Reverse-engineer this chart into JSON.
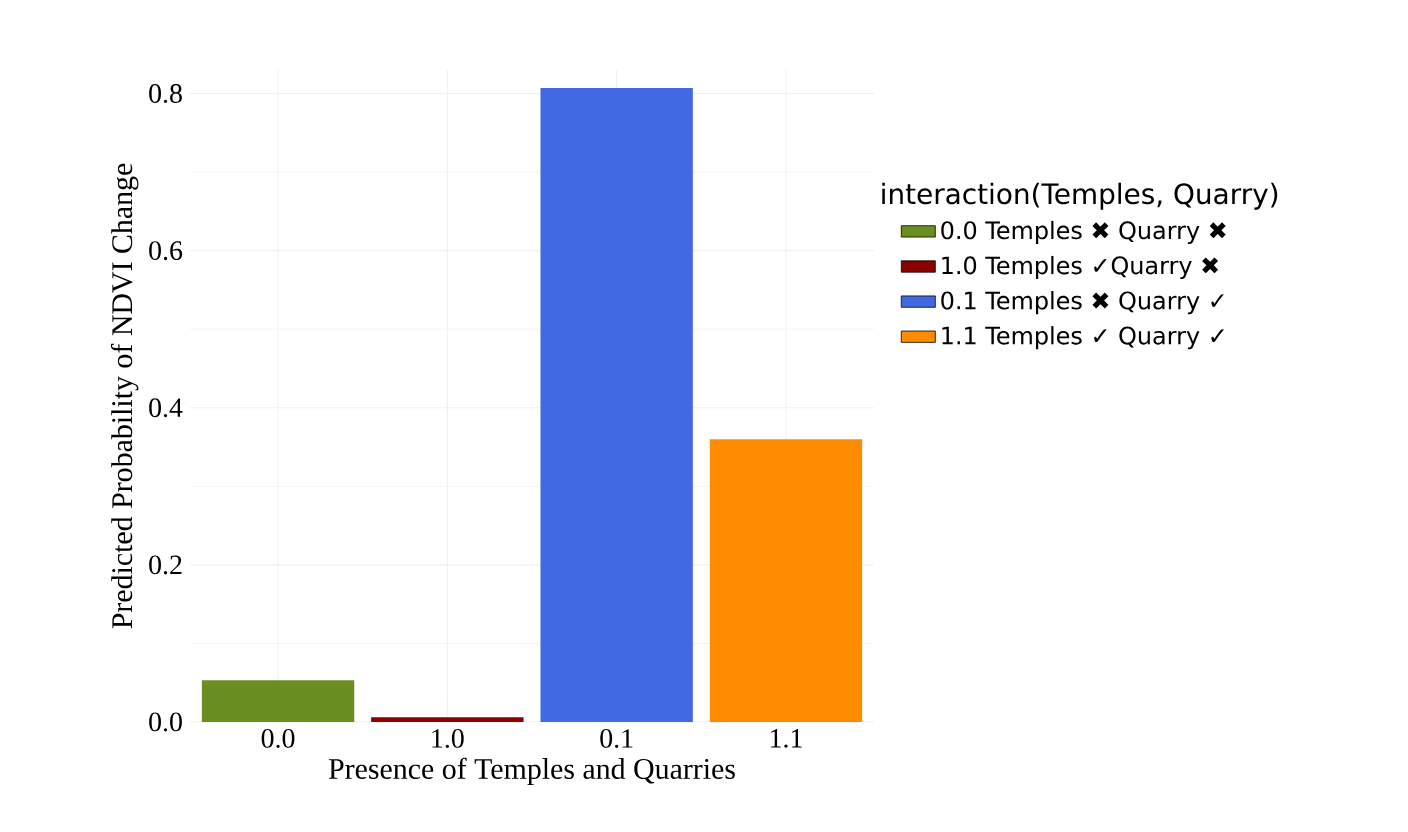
{
  "chart_data": {
    "type": "bar",
    "xlabel": "Presence of Temples and Quarries",
    "ylabel": "Predicted Probability of NDVI Change",
    "legend_title": "interaction(Temples, Quarry)",
    "categories": [
      "0.0",
      "1.0",
      "0.1",
      "1.1"
    ],
    "series": [
      {
        "name": "0.0  Temples ✖ Quarry ✖",
        "color": "#6b8e23",
        "values": [
          0.053,
          null,
          null,
          null
        ]
      },
      {
        "name": "1.0  Temples ✓Quarry ✖",
        "color": "#8b0000",
        "values": [
          null,
          0.006,
          null,
          null
        ]
      },
      {
        "name": "0.1  Temples ✖ Quarry ✓",
        "color": "#4169e1",
        "values": [
          null,
          null,
          0.807,
          null
        ]
      },
      {
        "name": "1.1  Temples ✓ Quarry ✓",
        "color": "#ff8c00",
        "values": [
          null,
          null,
          null,
          0.36
        ]
      }
    ],
    "ylim": [
      0,
      0.83
    ],
    "yticks": [
      {
        "value": 0,
        "label": "0.0"
      },
      0.2,
      0.4,
      0.6,
      0.8
    ],
    "grid": true,
    "legend": "right"
  }
}
